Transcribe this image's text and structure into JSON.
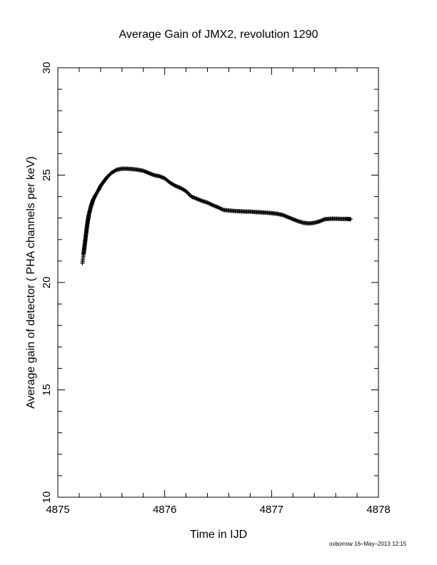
{
  "chart_data": {
    "type": "scatter",
    "title": "Average Gain of JMX2, revolution 1290",
    "xlabel": "Time in IJD",
    "ylabel": "Average gain of detector ( PHA channels per keV)",
    "xlim": [
      4875,
      4878
    ],
    "ylim": [
      10,
      30
    ],
    "x_ticks": [
      "4875",
      "4876",
      "4877",
      "4878"
    ],
    "y_ticks": [
      "10",
      "15",
      "20",
      "25",
      "30"
    ],
    "grid": false,
    "marker": "plus",
    "series": [
      {
        "x": [
          4875.23,
          4875.24,
          4875.245,
          4875.25,
          4875.255,
          4875.26,
          4875.265,
          4875.27,
          4875.275,
          4875.28,
          4875.285,
          4875.29,
          4875.3,
          4875.31,
          4875.32,
          4875.33,
          4875.35,
          4875.38,
          4875.4,
          4875.43,
          4875.46,
          4875.5,
          4875.55,
          4875.6,
          4875.65,
          4875.7,
          4875.75,
          4875.8,
          4875.85,
          4875.9,
          4875.95,
          4876.0,
          4876.05,
          4876.1,
          4876.15,
          4876.2,
          4876.25,
          4876.3,
          4876.35,
          4876.4,
          4876.45,
          4876.5,
          4876.55,
          4876.6,
          4876.65,
          4876.7,
          4876.75,
          4876.8,
          4876.85,
          4876.9,
          4876.95,
          4877.0,
          4877.05,
          4877.1,
          4877.15,
          4877.2,
          4877.25,
          4877.3,
          4877.35,
          4877.4,
          4877.45,
          4877.5,
          4877.55,
          4877.6,
          4877.65,
          4877.7,
          4877.74
        ],
        "y": [
          20.9,
          21.3,
          21.5,
          21.7,
          21.9,
          22.1,
          22.3,
          22.5,
          22.7,
          22.85,
          23.0,
          23.15,
          23.35,
          23.55,
          23.7,
          23.85,
          24.05,
          24.3,
          24.5,
          24.7,
          24.9,
          25.1,
          25.25,
          25.3,
          25.3,
          25.28,
          25.25,
          25.2,
          25.1,
          25.0,
          24.95,
          24.85,
          24.65,
          24.5,
          24.4,
          24.25,
          24.0,
          23.9,
          23.8,
          23.72,
          23.6,
          23.5,
          23.38,
          23.35,
          23.33,
          23.32,
          23.3,
          23.3,
          23.28,
          23.27,
          23.25,
          23.23,
          23.2,
          23.15,
          23.05,
          22.95,
          22.85,
          22.78,
          22.75,
          22.78,
          22.85,
          22.95,
          22.97,
          22.97,
          22.96,
          22.96,
          22.95
        ]
      }
    ]
  },
  "footer": "oxborrow 16–May–2013 12:15"
}
